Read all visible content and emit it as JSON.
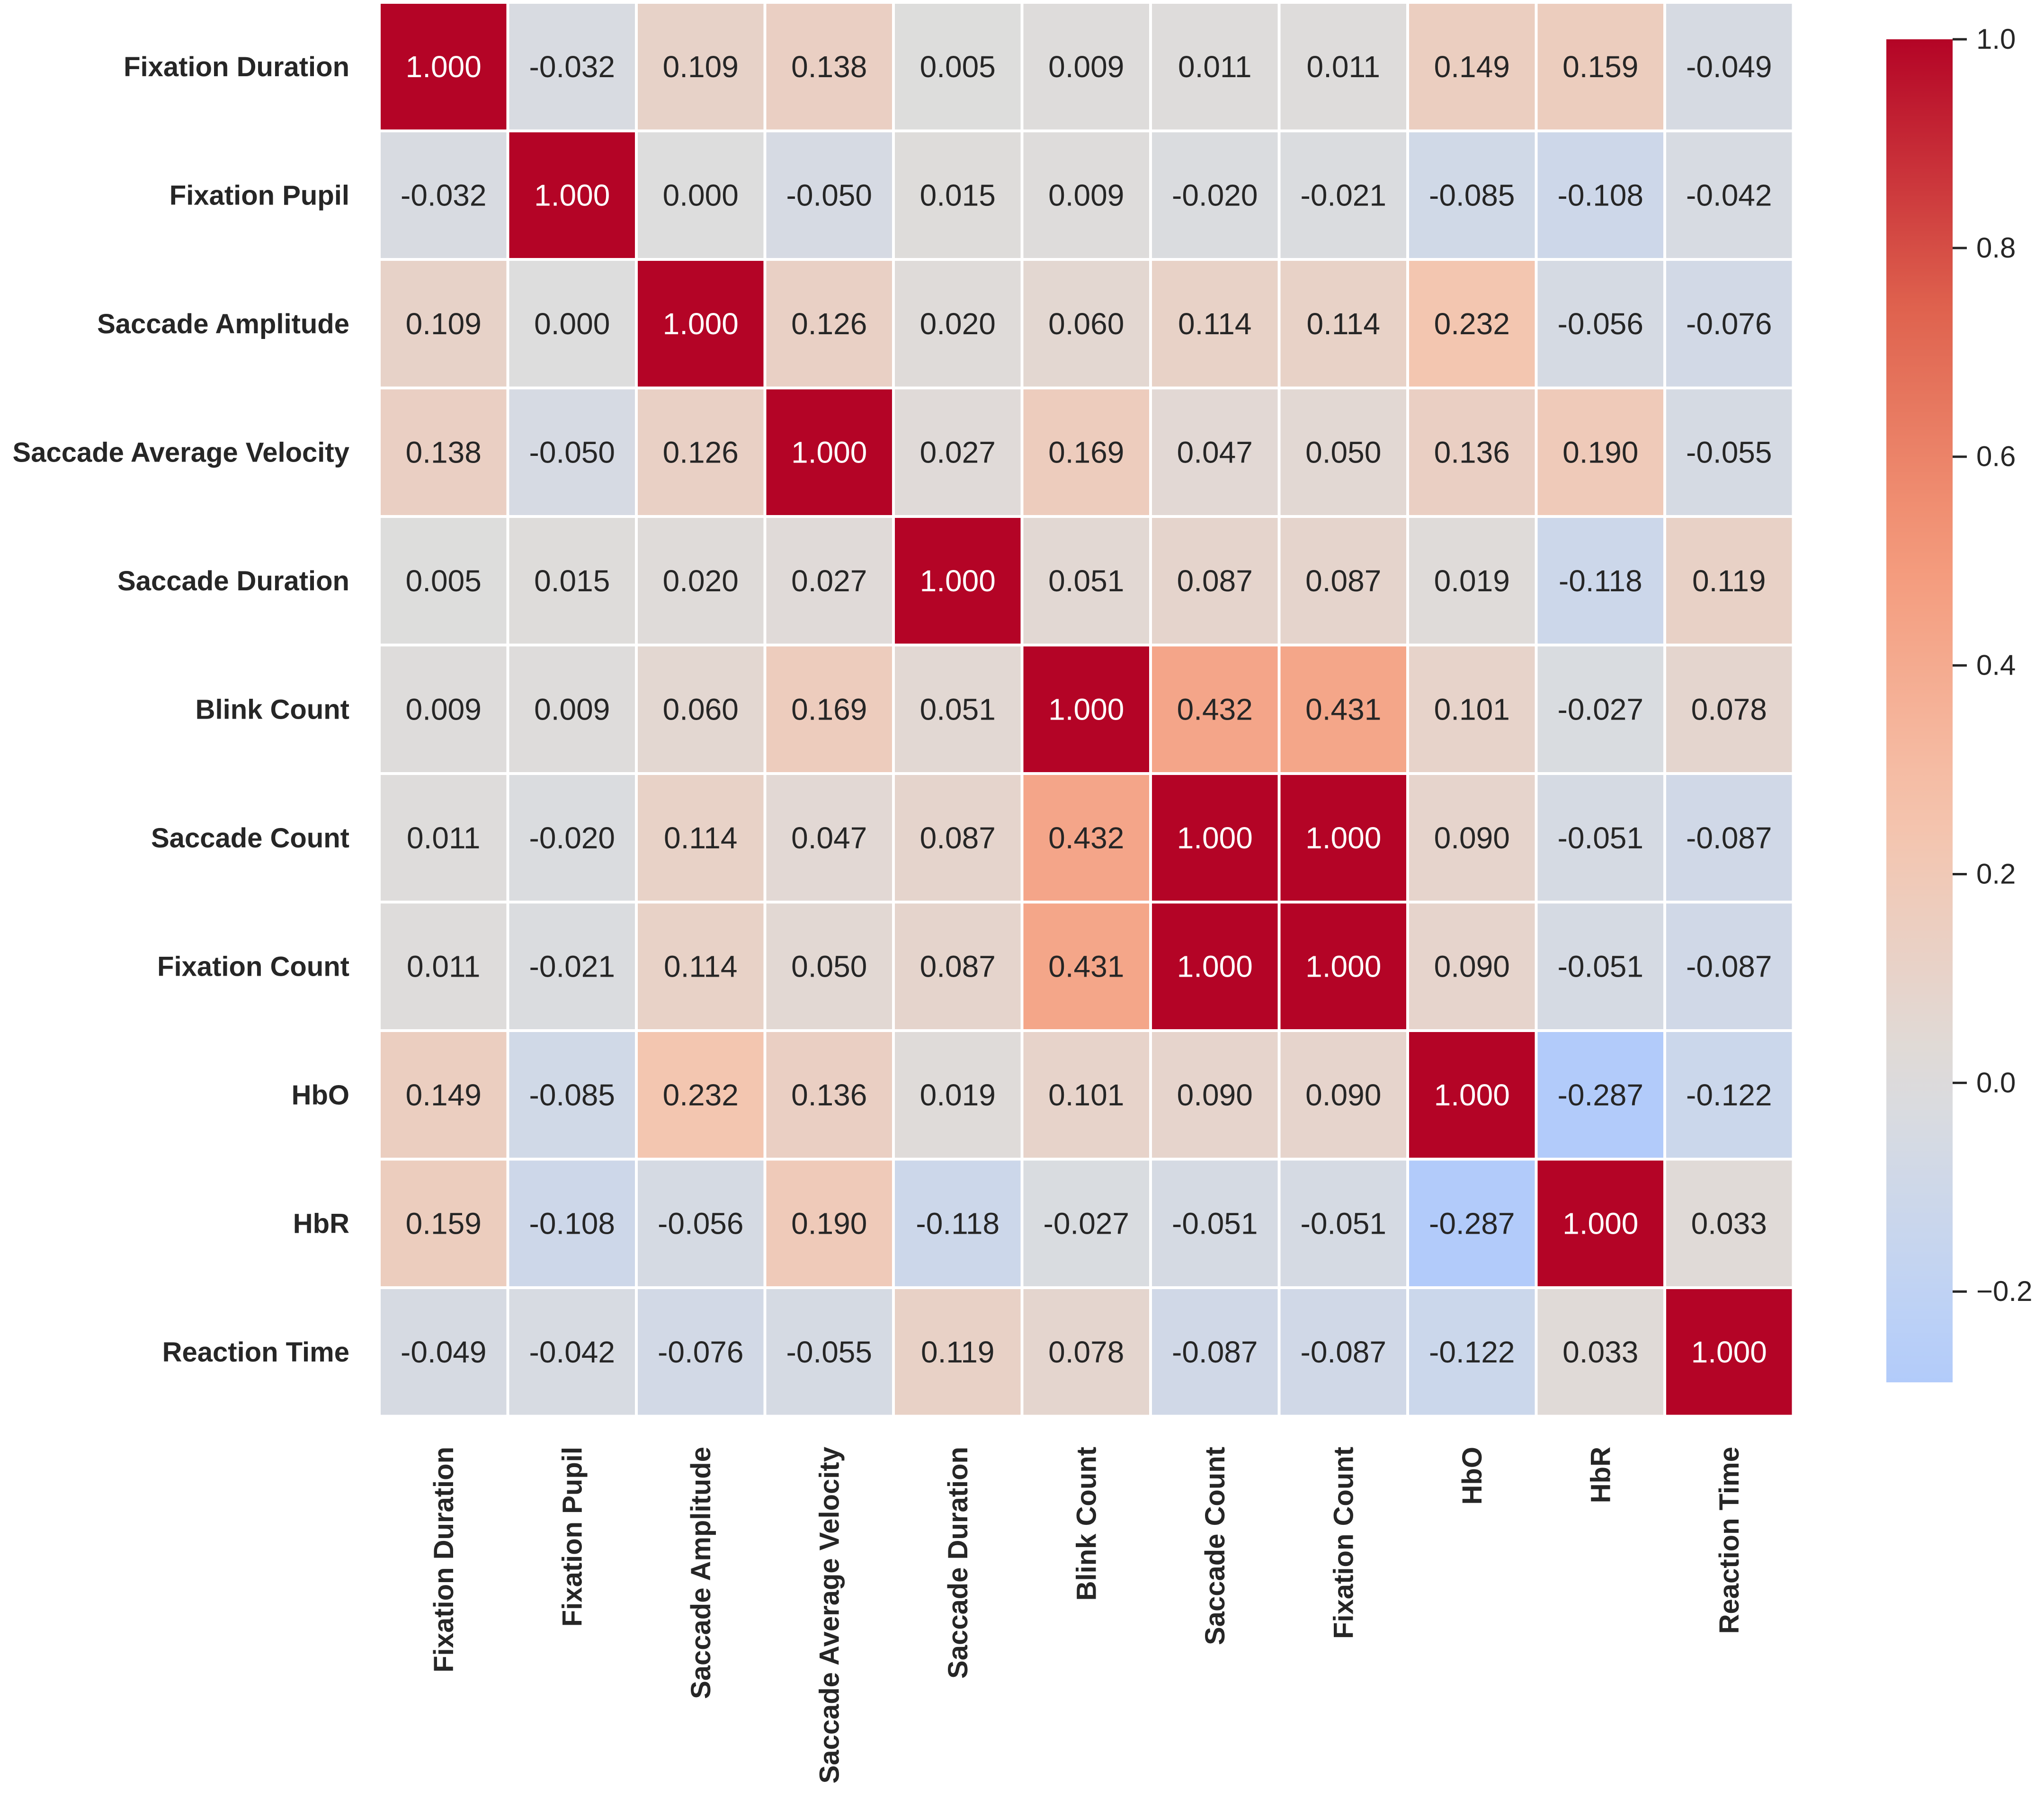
{
  "chart_data": {
    "type": "heatmap",
    "title": "",
    "labels": [
      "Fixation Duration",
      "Fixation Pupil",
      "Saccade Amplitude",
      "Saccade Average Velocity",
      "Saccade Duration",
      "Blink Count",
      "Saccade Count",
      "Fixation Count",
      "HbO",
      "HbR",
      "Reaction Time"
    ],
    "matrix": [
      [
        1.0,
        -0.032,
        0.109,
        0.138,
        0.005,
        0.009,
        0.011,
        0.011,
        0.149,
        0.159,
        -0.049
      ],
      [
        -0.032,
        1.0,
        0.0,
        -0.05,
        0.015,
        0.009,
        -0.02,
        -0.021,
        -0.085,
        -0.108,
        -0.042
      ],
      [
        0.109,
        0.0,
        1.0,
        0.126,
        0.02,
        0.06,
        0.114,
        0.114,
        0.232,
        -0.056,
        -0.076
      ],
      [
        0.138,
        -0.05,
        0.126,
        1.0,
        0.027,
        0.169,
        0.047,
        0.05,
        0.136,
        0.19,
        -0.055
      ],
      [
        0.005,
        0.015,
        0.02,
        0.027,
        1.0,
        0.051,
        0.087,
        0.087,
        0.019,
        -0.118,
        0.119
      ],
      [
        0.009,
        0.009,
        0.06,
        0.169,
        0.051,
        1.0,
        0.432,
        0.431,
        0.101,
        -0.027,
        0.078
      ],
      [
        0.011,
        -0.02,
        0.114,
        0.047,
        0.087,
        0.432,
        1.0,
        1.0,
        0.09,
        -0.051,
        -0.087
      ],
      [
        0.011,
        -0.021,
        0.114,
        0.05,
        0.087,
        0.431,
        1.0,
        1.0,
        0.09,
        -0.051,
        -0.087
      ],
      [
        0.149,
        -0.085,
        0.232,
        0.136,
        0.019,
        0.101,
        0.09,
        0.09,
        1.0,
        -0.287,
        -0.122
      ],
      [
        0.159,
        -0.108,
        -0.056,
        0.19,
        -0.118,
        -0.027,
        -0.051,
        -0.051,
        -0.287,
        1.0,
        0.033
      ],
      [
        -0.049,
        -0.042,
        -0.076,
        -0.055,
        0.119,
        0.078,
        -0.087,
        -0.087,
        -0.122,
        0.033,
        1.0
      ]
    ],
    "colormap": "coolwarm",
    "center": 0,
    "colorbar": {
      "range": [
        -0.287,
        1.0
      ],
      "ticks": [
        1.0,
        0.8,
        0.6,
        0.4,
        0.2,
        0.0,
        -0.2
      ],
      "tick_labels": [
        "1.0",
        "0.8",
        "0.6",
        "0.4",
        "0.2",
        "0.0",
        "−0.2"
      ]
    },
    "annotation_format": "0.000"
  }
}
